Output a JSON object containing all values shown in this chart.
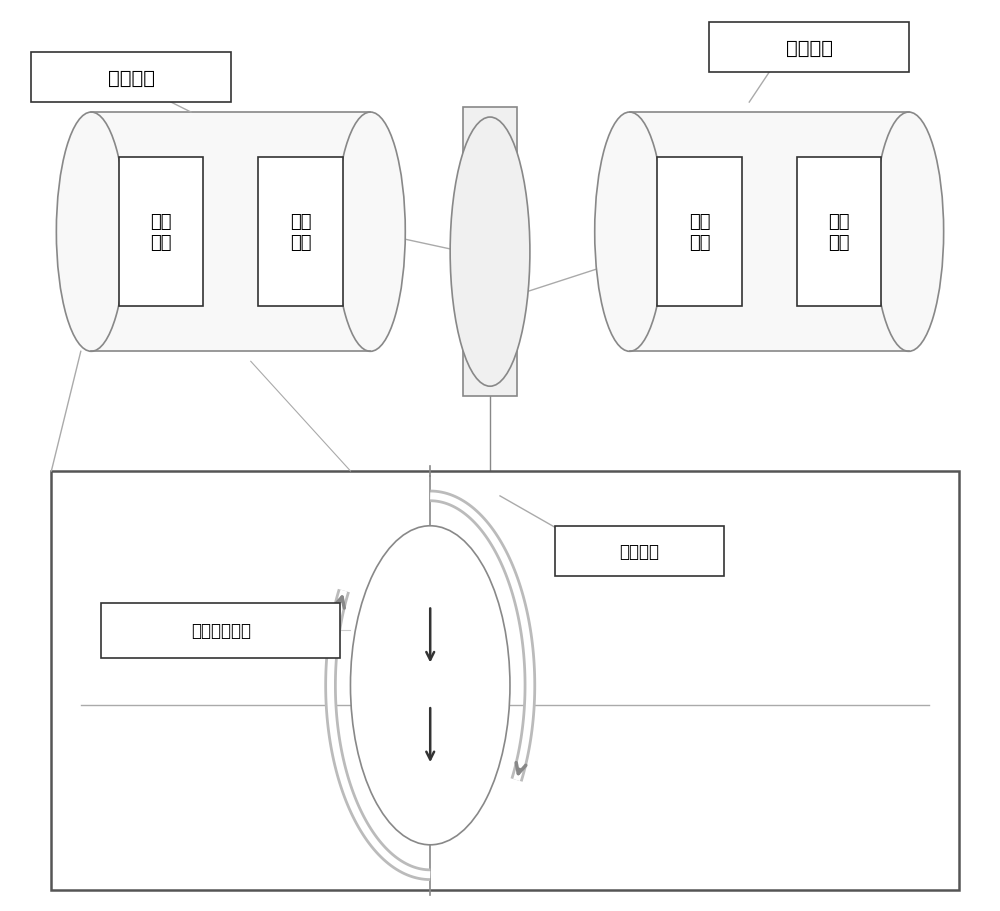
{
  "bg_color": "#ffffff",
  "label_fashe": "发射装置",
  "label_jieshou": "接收装置",
  "label_saomiao": "扫描装置",
  "label_quanxi": "全息投影成像",
  "label_shezhi": "设置\n单元",
  "label_fashe_unit": "发射\n单元",
  "label_jieshou_unit": "接收\n单元",
  "label_yanzheng": "验证\n单元",
  "edge_color": "#888888",
  "line_color": "#aaaaaa",
  "dark_line": "#555555",
  "arrow_gray": "#b0b0b0",
  "cyl_fill": "#f5f5f5"
}
